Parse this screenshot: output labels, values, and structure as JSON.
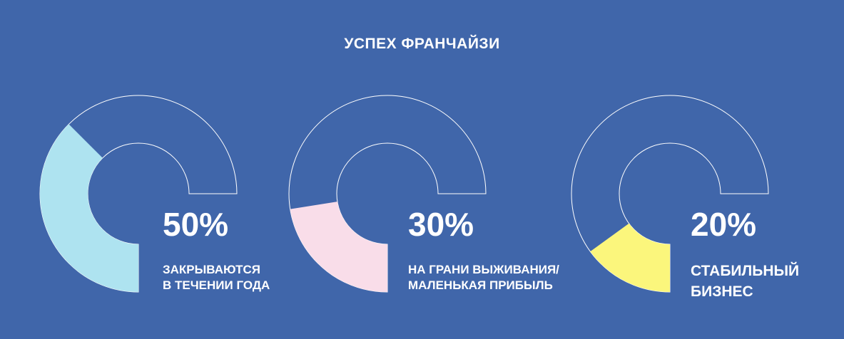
{
  "title": "УСПЕХ ФРАНЧАЙЗИ",
  "chart_data": {
    "type": "pie",
    "title": "УСПЕХ ФРАНЧАЙЗИ",
    "units": "%",
    "slices": [
      {
        "value": 50,
        "label": "50%",
        "caption_lines": [
          "ЗАКРЫВАЮТСЯ",
          "В ТЕЧЕНИИ ГОДА"
        ],
        "color": "#aee3f0"
      },
      {
        "value": 30,
        "label": "30%",
        "caption_lines": [
          "НА ГРАНИ ВЫЖИВАНИЯ/",
          "МАЛЕНЬКАЯ ПРИБЫЛЬ"
        ],
        "color": "#f9dde9"
      },
      {
        "value": 20,
        "label": "20%",
        "caption_lines": [
          "СТАБИЛЬНЫЙ",
          "БИЗНЕС"
        ],
        "color": "#fbf67c"
      }
    ]
  },
  "colors": {
    "background": "#4066aa",
    "outline": "#ffffff"
  }
}
